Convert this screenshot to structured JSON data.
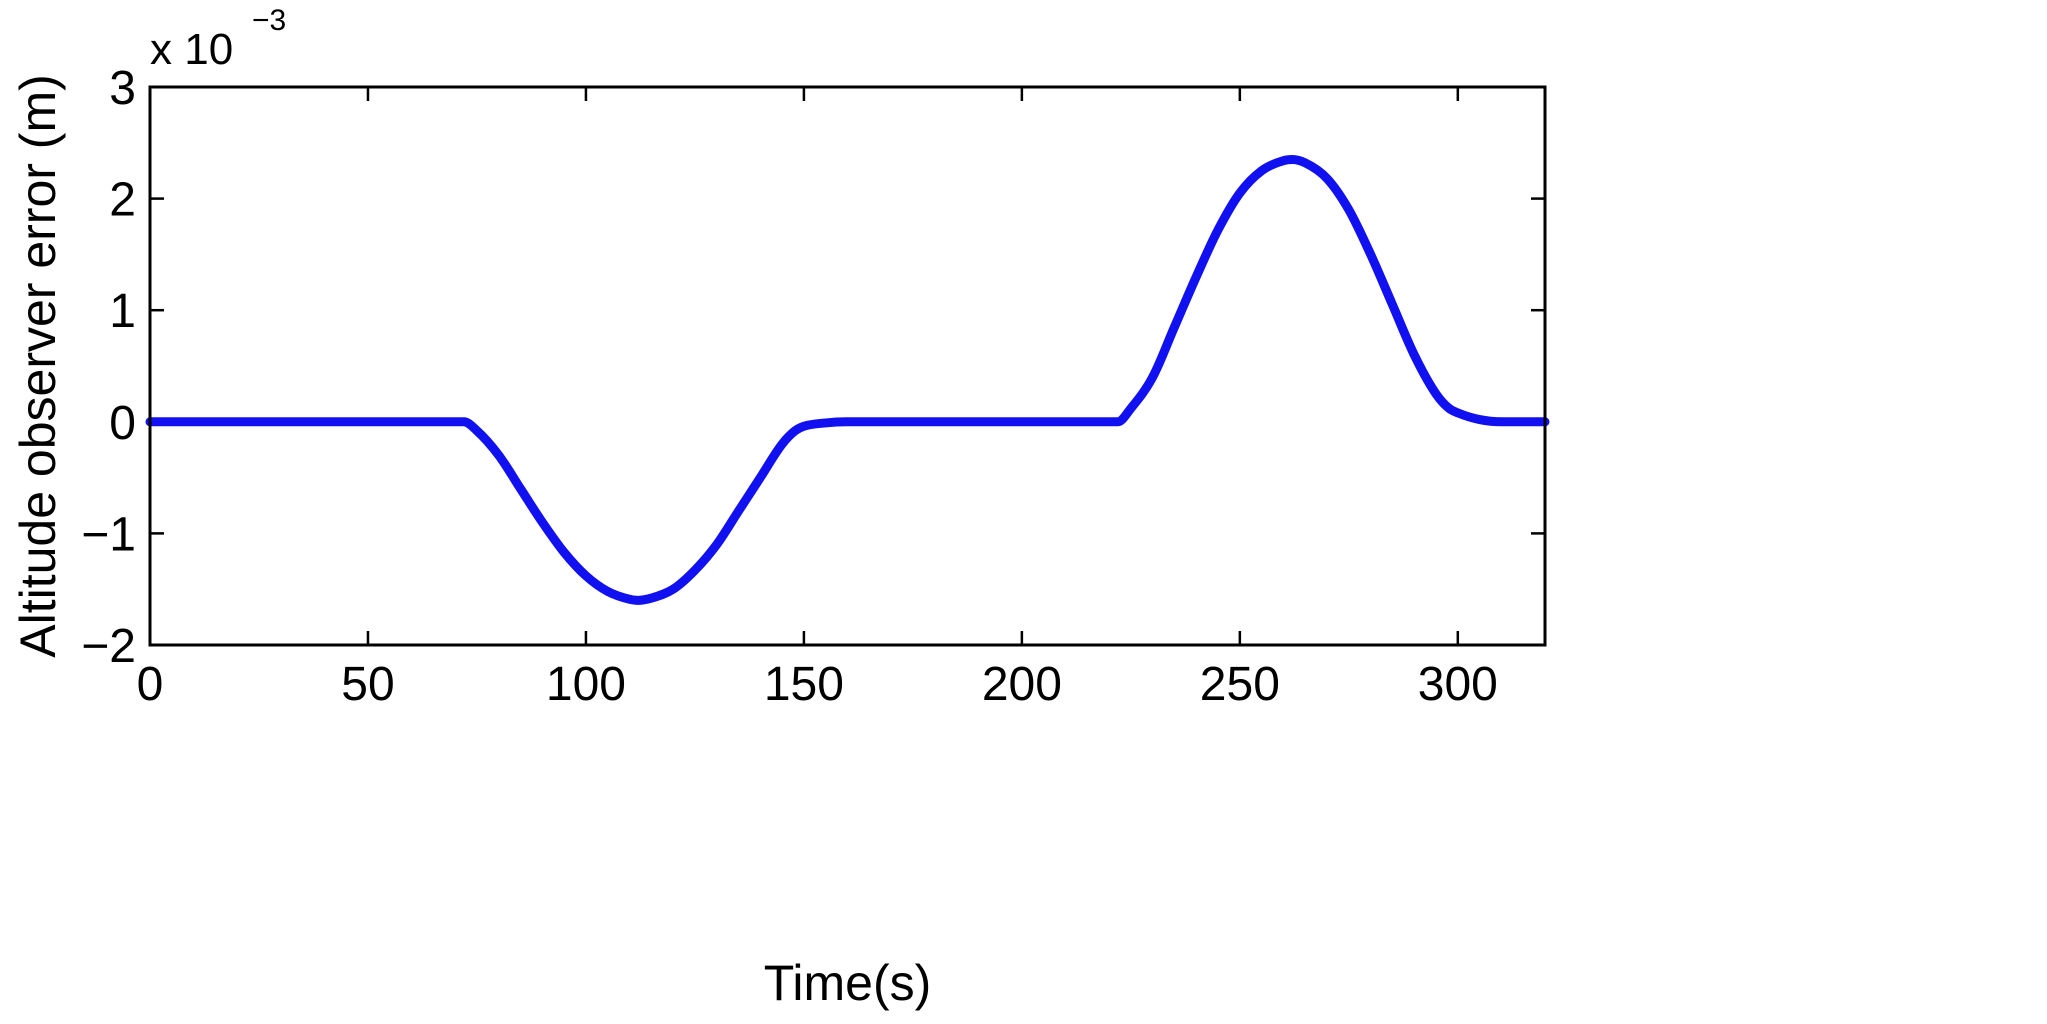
{
  "chart_data": {
    "type": "line",
    "title": "",
    "xlabel": "Time(s)",
    "ylabel": "Altitude observer error (m)",
    "y_multiplier": {
      "base": "x 10",
      "exponent": "−3"
    },
    "xlim": [
      0,
      320
    ],
    "ylim": [
      -2,
      3
    ],
    "x_ticks": [
      0,
      50,
      100,
      150,
      200,
      250,
      300
    ],
    "x_tick_labels": [
      "0",
      "50",
      "100",
      "150",
      "200",
      "250",
      "300"
    ],
    "y_ticks": [
      -2,
      -1,
      0,
      1,
      2,
      3
    ],
    "y_tick_labels": [
      "−2",
      "−1",
      "0",
      "1",
      "2",
      "3"
    ],
    "grid": false,
    "legend": "none",
    "series": [
      {
        "color": "#1010f0",
        "x": [
          0,
          10,
          20,
          30,
          40,
          50,
          60,
          70,
          72,
          75,
          80,
          85,
          90,
          95,
          100,
          105,
          110,
          112,
          115,
          120,
          125,
          130,
          135,
          140,
          145,
          148,
          150,
          155,
          160,
          170,
          180,
          190,
          200,
          210,
          220,
          222,
          225,
          230,
          235,
          240,
          245,
          250,
          255,
          260,
          262,
          265,
          270,
          275,
          280,
          285,
          290,
          295,
          298,
          300,
          305,
          310,
          320
        ],
        "y": [
          0,
          0,
          0,
          0,
          0,
          0,
          0,
          0,
          0,
          -0.08,
          -0.3,
          -0.6,
          -0.9,
          -1.17,
          -1.38,
          -1.52,
          -1.59,
          -1.6,
          -1.58,
          -1.5,
          -1.33,
          -1.1,
          -0.8,
          -0.5,
          -0.2,
          -0.08,
          -0.04,
          -0.01,
          0,
          0,
          0,
          0,
          0,
          0,
          0,
          0,
          0.12,
          0.4,
          0.85,
          1.3,
          1.72,
          2.05,
          2.25,
          2.34,
          2.35,
          2.32,
          2.18,
          1.9,
          1.5,
          1.05,
          0.6,
          0.25,
          0.12,
          0.08,
          0.02,
          0,
          0
        ]
      }
    ]
  }
}
